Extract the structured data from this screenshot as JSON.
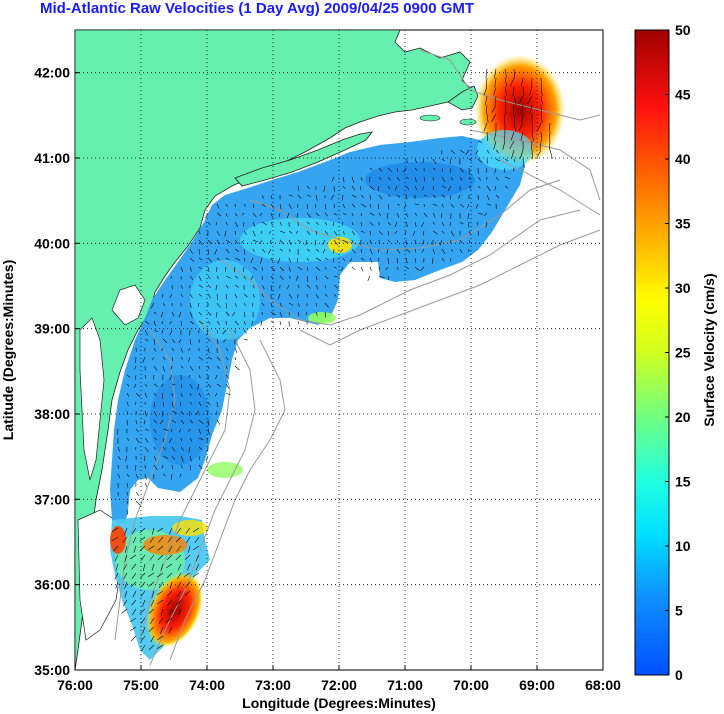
{
  "title": "Mid-Atlantic Raw Velocities (1 Day Avg) 2009/04/25 0900 GMT",
  "map": {
    "xlabel": "Longitude (Degrees:Minutes)",
    "ylabel": "Latitude (Degrees:Minutes)",
    "x_ticks": [
      "76:00",
      "75:00",
      "74:00",
      "73:00",
      "72:00",
      "71:00",
      "70:00",
      "69:00",
      "68:00"
    ],
    "y_ticks": [
      "42:00",
      "41:00",
      "40:00",
      "39:00",
      "38:00",
      "37:00",
      "36:00",
      "35:00"
    ],
    "lon_range": [
      -76,
      -68
    ],
    "lat_range": [
      35,
      42.5
    ],
    "grid": "dotted",
    "land_color": "#66f0b0",
    "ocean_color": "#ffffff"
  },
  "colorbar": {
    "label": "Surface Velocity (cm/s)",
    "units": "cm/s",
    "ticks": [
      "50",
      "45",
      "40",
      "35",
      "30",
      "25",
      "20",
      "15",
      "10",
      "5",
      "0"
    ],
    "range": [
      0,
      50
    ],
    "colormap": "jet"
  }
}
